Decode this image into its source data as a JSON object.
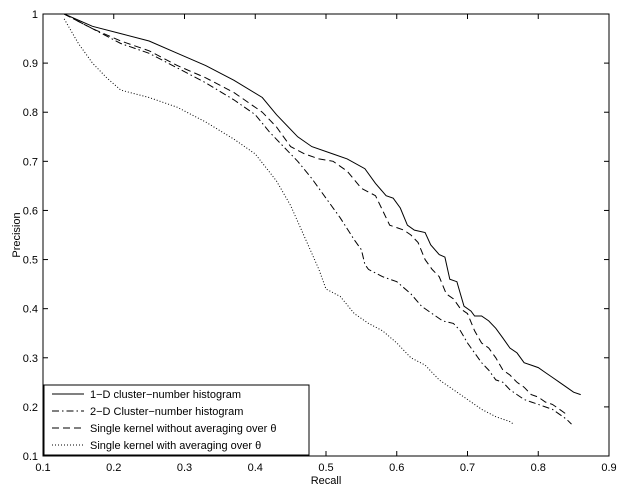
{
  "chart_data": {
    "type": "line",
    "title": "",
    "xlabel": "Recall",
    "ylabel": "Precision",
    "xlim": [
      0.1,
      0.9
    ],
    "ylim": [
      0.1,
      1.0
    ],
    "xticks": [
      "0.1",
      "0.2",
      "0.3",
      "0.4",
      "0.5",
      "0.6",
      "0.7",
      "0.8",
      "0.9"
    ],
    "yticks": [
      "0.1",
      "0.2",
      "0.3",
      "0.4",
      "0.5",
      "0.6",
      "0.7",
      "0.8",
      "0.9",
      "1"
    ],
    "grid": false,
    "legend_position": "bottom-left",
    "series": [
      {
        "name": "1−D cluster−number histogram",
        "style": "solid",
        "color": "#000000",
        "x": [
          0.13,
          0.17,
          0.21,
          0.25,
          0.29,
          0.33,
          0.37,
          0.41,
          0.43,
          0.46,
          0.48,
          0.51,
          0.53,
          0.555,
          0.57,
          0.585,
          0.595,
          0.605,
          0.615,
          0.625,
          0.64,
          0.648,
          0.66,
          0.668,
          0.675,
          0.685,
          0.69,
          0.695,
          0.705,
          0.71,
          0.72,
          0.73,
          0.74,
          0.75,
          0.76,
          0.77,
          0.78,
          0.79,
          0.8,
          0.81,
          0.82,
          0.83,
          0.84,
          0.85,
          0.86
        ],
        "y": [
          1.0,
          0.975,
          0.96,
          0.945,
          0.92,
          0.895,
          0.865,
          0.83,
          0.795,
          0.75,
          0.73,
          0.715,
          0.705,
          0.685,
          0.655,
          0.63,
          0.625,
          0.605,
          0.57,
          0.56,
          0.555,
          0.53,
          0.51,
          0.505,
          0.46,
          0.455,
          0.43,
          0.405,
          0.395,
          0.385,
          0.385,
          0.375,
          0.36,
          0.34,
          0.32,
          0.31,
          0.29,
          0.285,
          0.28,
          0.27,
          0.26,
          0.25,
          0.24,
          0.23,
          0.225
        ]
      },
      {
        "name": "2−D Cluster−number histogram",
        "style": "dashdot",
        "color": "#000000",
        "x": [
          0.13,
          0.17,
          0.21,
          0.25,
          0.29,
          0.33,
          0.37,
          0.4,
          0.42,
          0.44,
          0.46,
          0.48,
          0.5,
          0.52,
          0.54,
          0.55,
          0.555,
          0.56,
          0.58,
          0.6,
          0.62,
          0.635,
          0.65,
          0.665,
          0.68,
          0.69,
          0.7,
          0.71,
          0.72,
          0.73,
          0.74,
          0.75,
          0.76,
          0.77,
          0.78,
          0.79,
          0.8,
          0.81,
          0.82,
          0.83,
          0.84,
          0.847
        ],
        "y": [
          1.0,
          0.97,
          0.94,
          0.92,
          0.89,
          0.86,
          0.825,
          0.795,
          0.76,
          0.73,
          0.7,
          0.665,
          0.625,
          0.585,
          0.54,
          0.52,
          0.49,
          0.48,
          0.465,
          0.455,
          0.43,
          0.405,
          0.39,
          0.375,
          0.37,
          0.355,
          0.33,
          0.31,
          0.29,
          0.275,
          0.255,
          0.25,
          0.235,
          0.225,
          0.215,
          0.21,
          0.205,
          0.2,
          0.195,
          0.185,
          0.175,
          0.165
        ]
      },
      {
        "name": "Single kernel without averaging over θ",
        "style": "dashed",
        "color": "#000000",
        "x": [
          0.13,
          0.17,
          0.21,
          0.25,
          0.29,
          0.33,
          0.37,
          0.41,
          0.43,
          0.45,
          0.47,
          0.49,
          0.51,
          0.53,
          0.55,
          0.57,
          0.58,
          0.59,
          0.6,
          0.61,
          0.62,
          0.63,
          0.64,
          0.65,
          0.66,
          0.67,
          0.68,
          0.69,
          0.7,
          0.71,
          0.72,
          0.73,
          0.74,
          0.75,
          0.76,
          0.77,
          0.78,
          0.79,
          0.8,
          0.81,
          0.82,
          0.83,
          0.84
        ],
        "y": [
          1.0,
          0.97,
          0.945,
          0.925,
          0.895,
          0.87,
          0.84,
          0.8,
          0.77,
          0.73,
          0.715,
          0.705,
          0.7,
          0.68,
          0.645,
          0.63,
          0.6,
          0.57,
          0.565,
          0.56,
          0.55,
          0.535,
          0.5,
          0.48,
          0.465,
          0.43,
          0.42,
          0.4,
          0.39,
          0.355,
          0.33,
          0.32,
          0.3,
          0.275,
          0.265,
          0.25,
          0.24,
          0.225,
          0.22,
          0.21,
          0.205,
          0.195,
          0.185
        ]
      },
      {
        "name": "Single kernel with averaging over θ",
        "style": "dotted",
        "color": "#000000",
        "x": [
          0.13,
          0.15,
          0.17,
          0.19,
          0.21,
          0.25,
          0.29,
          0.33,
          0.37,
          0.4,
          0.43,
          0.45,
          0.47,
          0.49,
          0.5,
          0.52,
          0.54,
          0.56,
          0.58,
          0.6,
          0.62,
          0.64,
          0.66,
          0.68,
          0.7,
          0.72,
          0.74,
          0.76,
          0.765
        ],
        "y": [
          0.99,
          0.94,
          0.9,
          0.87,
          0.845,
          0.83,
          0.81,
          0.78,
          0.745,
          0.715,
          0.66,
          0.61,
          0.545,
          0.48,
          0.44,
          0.425,
          0.39,
          0.37,
          0.355,
          0.33,
          0.3,
          0.285,
          0.255,
          0.235,
          0.215,
          0.195,
          0.18,
          0.17,
          0.165
        ]
      }
    ]
  }
}
